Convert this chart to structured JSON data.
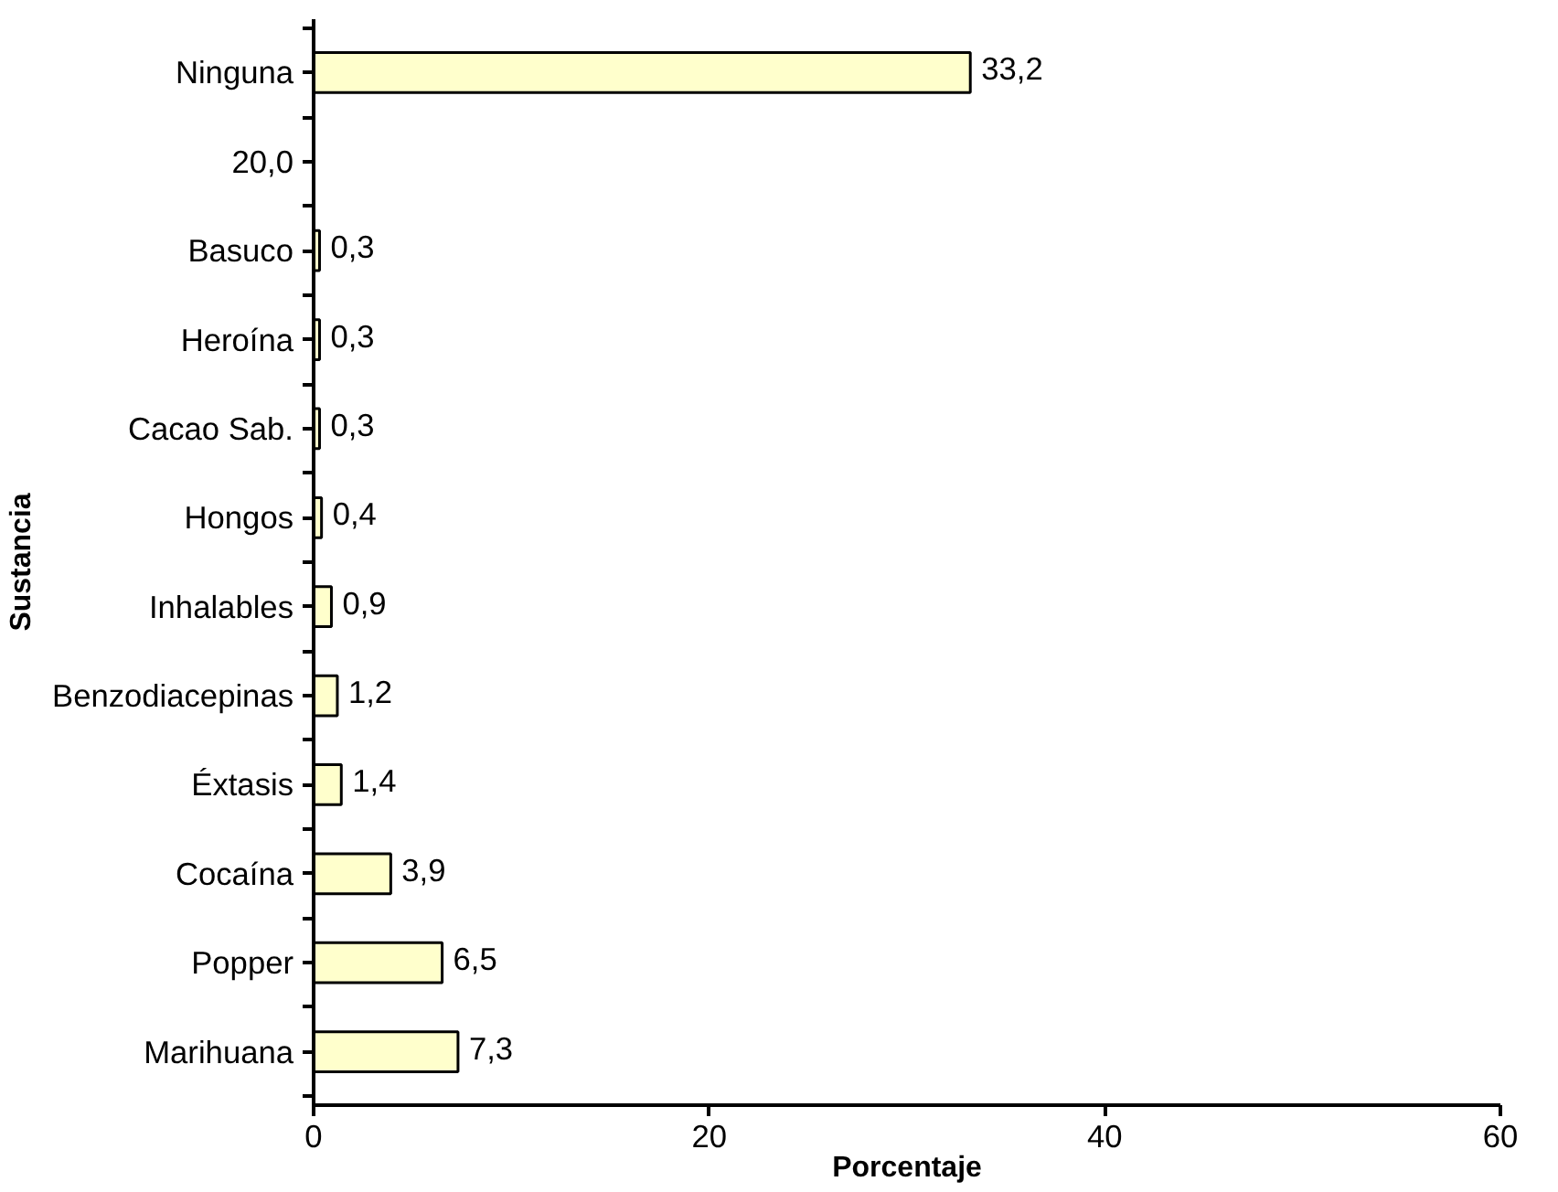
{
  "chart_data": {
    "type": "bar",
    "orientation": "horizontal",
    "xlabel": "Porcentaje",
    "ylabel": "Sustancia",
    "categories": [
      "Ninguna",
      "20,0",
      "Basuco",
      "Heroína",
      "Cacao Sab.",
      "Hongos",
      "Inhalables",
      "Benzodiacepinas",
      "Éxtasis",
      "Cocaína",
      "Popper",
      "Marihuana"
    ],
    "values": [
      33.2,
      null,
      0.3,
      0.3,
      0.3,
      0.4,
      0.9,
      1.2,
      1.4,
      3.9,
      6.5,
      7.3
    ],
    "value_labels": [
      "33,2",
      null,
      "0,3",
      "0,3",
      "0,3",
      "0,4",
      "0,9",
      "1,2",
      "1,4",
      "3,9",
      "6,5",
      "7,3"
    ],
    "color": "#ffffcc",
    "xlim": [
      0,
      60
    ],
    "xticks": [
      0,
      20,
      40,
      60
    ],
    "grid": false
  }
}
